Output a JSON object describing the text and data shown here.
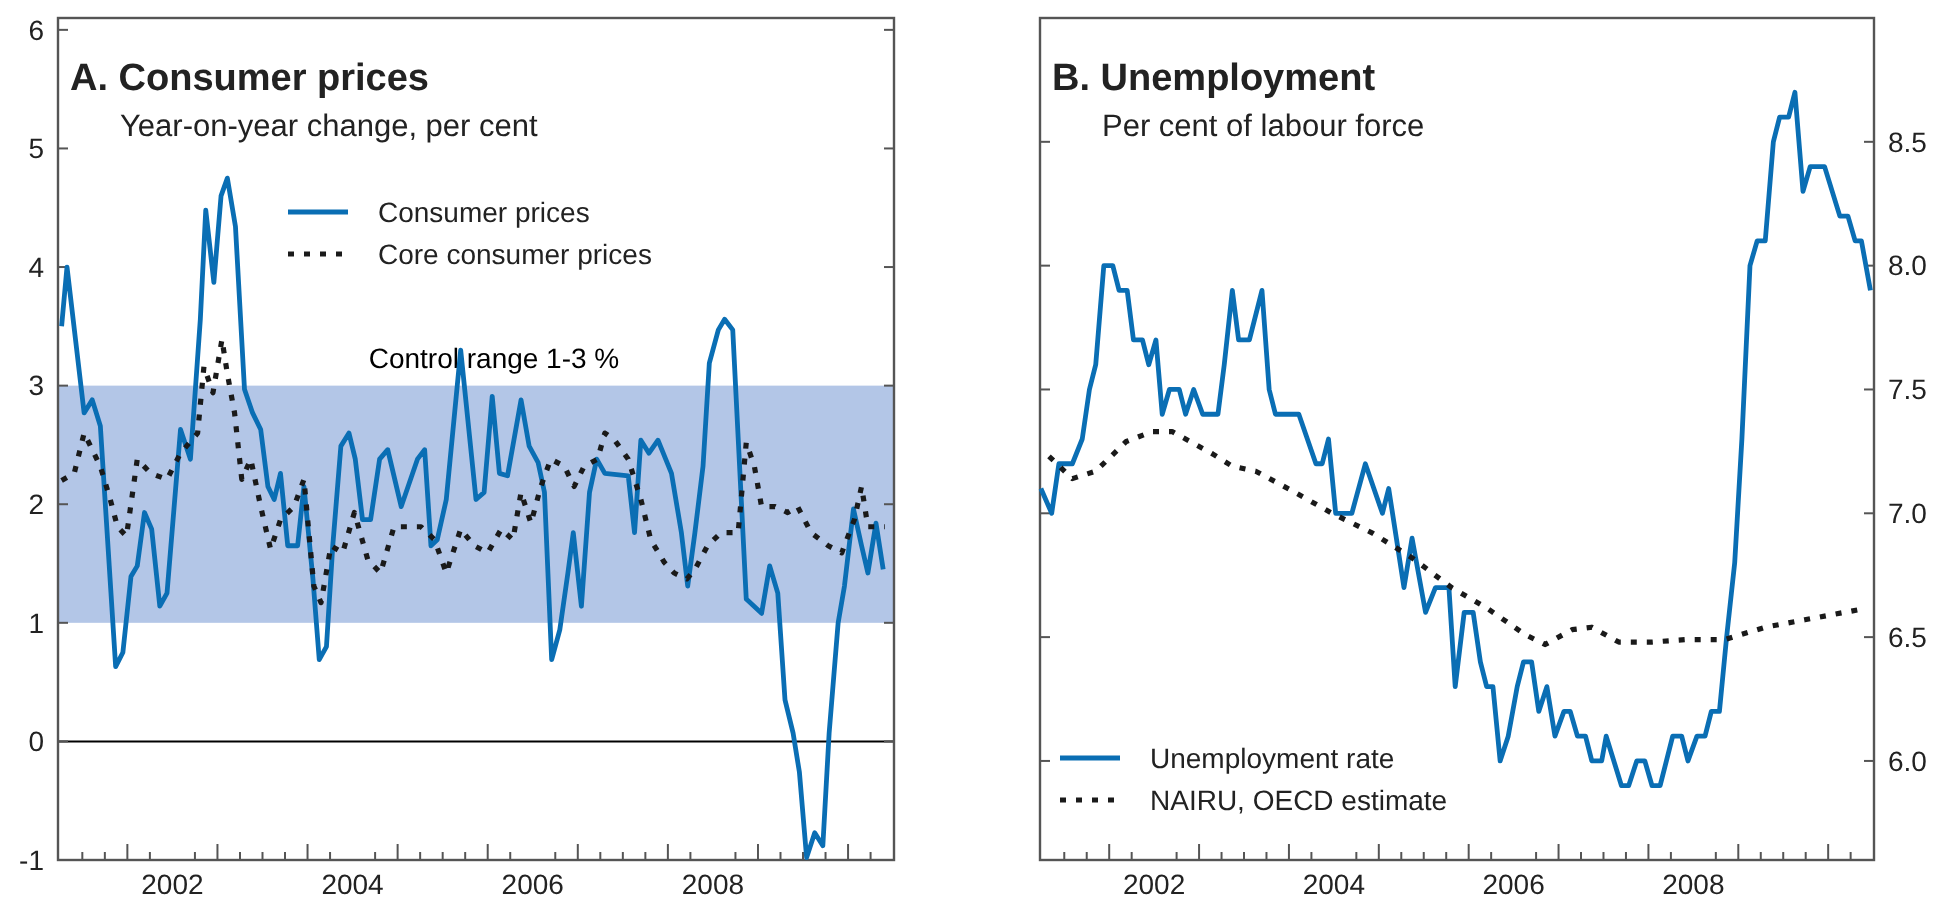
{
  "chart_data": [
    {
      "type": "line",
      "title": "A. Consumer prices",
      "subtitle": "Year-on-year change, per cent",
      "legend": "top",
      "xlim": [
        2001.23,
        2010.51
      ],
      "ylim": [
        -1,
        6.1
      ],
      "yticks": [
        -1,
        0,
        1,
        2,
        3,
        4,
        5,
        6
      ],
      "xticks": [
        {
          "value": 2001.5,
          "label": null
        },
        {
          "value": 2001.75,
          "label": null
        },
        {
          "value": 2002,
          "label": null
        },
        {
          "value": 2002.25,
          "label": null
        },
        {
          "value": 2002.5,
          "label": "2002"
        },
        {
          "value": 2002.75,
          "label": null
        },
        {
          "value": 2003,
          "label": null
        },
        {
          "value": 2003.25,
          "label": null
        },
        {
          "value": 2003.5,
          "label": null
        },
        {
          "value": 2003.75,
          "label": null
        },
        {
          "value": 2004,
          "label": null
        },
        {
          "value": 2004.25,
          "label": null
        },
        {
          "value": 2004.5,
          "label": "2004"
        },
        {
          "value": 2004.75,
          "label": null
        },
        {
          "value": 2005,
          "label": null
        },
        {
          "value": 2005.25,
          "label": null
        },
        {
          "value": 2005.5,
          "label": null
        },
        {
          "value": 2005.75,
          "label": null
        },
        {
          "value": 2006,
          "label": null
        },
        {
          "value": 2006.25,
          "label": null
        },
        {
          "value": 2006.5,
          "label": "2006"
        },
        {
          "value": 2006.75,
          "label": null
        },
        {
          "value": 2007,
          "label": null
        },
        {
          "value": 2007.25,
          "label": null
        },
        {
          "value": 2007.5,
          "label": null
        },
        {
          "value": 2007.75,
          "label": null
        },
        {
          "value": 2008,
          "label": null
        },
        {
          "value": 2008.25,
          "label": null
        },
        {
          "value": 2008.5,
          "label": "2008"
        },
        {
          "value": 2008.75,
          "label": null
        },
        {
          "value": 2009,
          "label": null
        },
        {
          "value": 2009.25,
          "label": null
        },
        {
          "value": 2009.5,
          "label": null
        },
        {
          "value": 2009.75,
          "label": null
        },
        {
          "value": 2010,
          "label": null
        },
        {
          "value": 2010.25,
          "label": null
        }
      ],
      "bands": [
        {
          "axis": "y",
          "from": 1,
          "to": 3,
          "label": "Control range 1-3 %",
          "color": "#b3c6e7"
        }
      ],
      "ref_lines": [
        {
          "axis": "y",
          "value": 0,
          "color": "#000000"
        }
      ],
      "series": [
        {
          "name": "Consumer prices",
          "color": "#0a6eb4",
          "line_style": "solid",
          "x": [
            2001.27,
            2001.33,
            2001.52,
            2001.61,
            2001.7,
            2001.87,
            2001.95,
            2002.04,
            2002.11,
            2002.19,
            2002.27,
            2002.36,
            2002.44,
            2002.59,
            2002.7,
            2002.81,
            2002.87,
            2002.96,
            2003.04,
            2003.11,
            2003.2,
            2003.3,
            2003.39,
            2003.48,
            2003.56,
            2003.63,
            2003.7,
            2003.78,
            2003.89,
            2003.96,
            2004.06,
            2004.13,
            2004.21,
            2004.28,
            2004.37,
            2004.46,
            2004.53,
            2004.61,
            2004.7,
            2004.8,
            2004.89,
            2005.04,
            2005.22,
            2005.3,
            2005.37,
            2005.44,
            2005.54,
            2005.7,
            2005.87,
            2005.96,
            2006.05,
            2006.13,
            2006.22,
            2006.37,
            2006.46,
            2006.56,
            2006.63,
            2006.71,
            2006.8,
            2006.89,
            2006.95,
            2007.04,
            2007.13,
            2007.21,
            2007.3,
            2007.56,
            2007.63,
            2007.7,
            2007.79,
            2007.89,
            2008.04,
            2008.15,
            2008.22,
            2008.3,
            2008.39,
            2008.46,
            2008.56,
            2008.63,
            2008.72,
            2008.87,
            2009.04,
            2009.13,
            2009.22,
            2009.3,
            2009.39,
            2009.46,
            2009.54,
            2009.63,
            2009.72,
            2009.79,
            2009.89,
            2009.96,
            2010.06,
            2010.15,
            2010.22,
            2010.31,
            2010.39
          ],
          "values": [
            3.5,
            4.0,
            2.77,
            2.88,
            2.66,
            0.63,
            0.75,
            1.39,
            1.48,
            1.93,
            1.79,
            1.14,
            1.25,
            2.63,
            2.38,
            3.56,
            4.48,
            3.87,
            4.6,
            4.75,
            4.34,
            2.97,
            2.77,
            2.63,
            2.15,
            2.04,
            2.26,
            1.65,
            1.65,
            2.15,
            1.37,
            0.69,
            0.8,
            1.65,
            2.49,
            2.6,
            2.38,
            1.87,
            1.87,
            2.38,
            2.46,
            1.98,
            2.38,
            2.46,
            1.65,
            1.7,
            2.04,
            3.3,
            2.04,
            2.1,
            2.91,
            2.26,
            2.24,
            2.88,
            2.49,
            2.35,
            2.1,
            0.69,
            0.94,
            1.42,
            1.76,
            1.14,
            2.1,
            2.38,
            2.26,
            2.24,
            1.76,
            2.54,
            2.43,
            2.54,
            2.26,
            1.76,
            1.31,
            1.76,
            2.32,
            3.19,
            3.47,
            3.56,
            3.47,
            1.2,
            1.08,
            1.48,
            1.25,
            0.35,
            0.07,
            -0.26,
            -0.98,
            -0.77,
            -0.88,
            0.07,
            1.0,
            1.31,
            1.96,
            1.65,
            1.42,
            1.84,
            1.45
          ]
        },
        {
          "name": "Core consumer prices",
          "color": "#1a1a1a",
          "line_style": "dotted",
          "x": [
            2001.27,
            2001.41,
            2001.52,
            2001.7,
            2001.81,
            2001.89,
            2001.99,
            2002.11,
            2002.26,
            2002.44,
            2002.59,
            2002.78,
            2002.85,
            2002.95,
            2003.05,
            2003.11,
            2003.19,
            2003.27,
            2003.37,
            2003.48,
            2003.59,
            2003.7,
            2003.85,
            2003.96,
            2004.07,
            2004.15,
            2004.26,
            2004.39,
            2004.52,
            2004.67,
            2004.81,
            2004.96,
            2005.11,
            2005.26,
            2005.41,
            2005.54,
            2005.7,
            2005.85,
            2006.0,
            2006.15,
            2006.28,
            2006.37,
            2006.48,
            2006.59,
            2006.7,
            2006.85,
            2006.96,
            2007.07,
            2007.22,
            2007.3,
            2007.41,
            2007.56,
            2007.7,
            2007.81,
            2007.96,
            2008.07,
            2008.21,
            2008.3,
            2008.44,
            2008.59,
            2008.78,
            2008.87,
            2008.96,
            2009.04,
            2009.19,
            2009.33,
            2009.44,
            2009.59,
            2009.78,
            2009.93,
            2010.07,
            2010.15,
            2010.22,
            2010.41
          ],
          "values": [
            2.2,
            2.26,
            2.6,
            2.32,
            2.04,
            1.81,
            1.73,
            2.38,
            2.26,
            2.21,
            2.43,
            2.6,
            3.16,
            2.94,
            3.39,
            3.1,
            2.77,
            2.21,
            2.38,
            1.98,
            1.62,
            1.87,
            1.98,
            2.21,
            1.31,
            1.17,
            1.65,
            1.59,
            1.93,
            1.53,
            1.42,
            1.81,
            1.81,
            1.81,
            1.7,
            1.42,
            1.79,
            1.65,
            1.59,
            1.79,
            1.7,
            2.1,
            1.84,
            2.15,
            2.38,
            2.32,
            2.15,
            2.32,
            2.38,
            2.6,
            2.54,
            2.38,
            2.04,
            1.7,
            1.51,
            1.42,
            1.37,
            1.45,
            1.65,
            1.76,
            1.76,
            2.52,
            2.32,
            1.98,
            1.98,
            1.93,
            1.98,
            1.76,
            1.65,
            1.59,
            1.87,
            2.15,
            1.81,
            1.81
          ]
        }
      ]
    },
    {
      "type": "line",
      "title": "B. Unemployment",
      "subtitle": "Per cent of labour force",
      "legend": "bottom left",
      "xlim": [
        2001.23,
        2010.51
      ],
      "y2lim": [
        5.6,
        9.0
      ],
      "y2ticks": [
        {
          "value": 6,
          "label": "6.0"
        },
        {
          "value": 6.5,
          "label": "6.5"
        },
        {
          "value": 7,
          "label": "7.0"
        },
        {
          "value": 7.5,
          "label": "7.5"
        },
        {
          "value": 8,
          "label": "8.0"
        },
        {
          "value": 8.5,
          "label": "8.5"
        }
      ],
      "xticks": [
        {
          "value": 2001.5,
          "label": null
        },
        {
          "value": 2001.75,
          "label": null
        },
        {
          "value": 2002,
          "label": null
        },
        {
          "value": 2002.25,
          "label": null
        },
        {
          "value": 2002.5,
          "label": "2002"
        },
        {
          "value": 2002.75,
          "label": null
        },
        {
          "value": 2003,
          "label": null
        },
        {
          "value": 2003.25,
          "label": null
        },
        {
          "value": 2003.5,
          "label": null
        },
        {
          "value": 2003.75,
          "label": null
        },
        {
          "value": 2004,
          "label": null
        },
        {
          "value": 2004.25,
          "label": null
        },
        {
          "value": 2004.5,
          "label": "2004"
        },
        {
          "value": 2004.75,
          "label": null
        },
        {
          "value": 2005,
          "label": null
        },
        {
          "value": 2005.25,
          "label": null
        },
        {
          "value": 2005.5,
          "label": null
        },
        {
          "value": 2005.75,
          "label": null
        },
        {
          "value": 2006,
          "label": null
        },
        {
          "value": 2006.25,
          "label": null
        },
        {
          "value": 2006.5,
          "label": "2006"
        },
        {
          "value": 2006.75,
          "label": null
        },
        {
          "value": 2007,
          "label": null
        },
        {
          "value": 2007.25,
          "label": null
        },
        {
          "value": 2007.5,
          "label": null
        },
        {
          "value": 2007.75,
          "label": null
        },
        {
          "value": 2008,
          "label": null
        },
        {
          "value": 2008.25,
          "label": null
        },
        {
          "value": 2008.5,
          "label": "2008"
        },
        {
          "value": 2008.75,
          "label": null
        },
        {
          "value": 2009,
          "label": null
        },
        {
          "value": 2009.25,
          "label": null
        },
        {
          "value": 2009.5,
          "label": null
        },
        {
          "value": 2009.75,
          "label": null
        },
        {
          "value": 2010,
          "label": null
        },
        {
          "value": 2010.25,
          "label": null
        }
      ],
      "series": [
        {
          "name": "Unemployment rate",
          "color": "#0a6eb4",
          "line_style": "solid",
          "axis": "y2",
          "x": [
            2001.24,
            2001.36,
            2001.44,
            2001.59,
            2001.7,
            2001.78,
            2001.85,
            2001.94,
            2002.04,
            2002.11,
            2002.2,
            2002.27,
            2002.37,
            2002.44,
            2002.52,
            2002.59,
            2002.67,
            2002.78,
            2002.85,
            2002.94,
            2003.04,
            2003.21,
            2003.28,
            2003.37,
            2003.44,
            2003.56,
            2003.7,
            2003.78,
            2003.85,
            2004.11,
            2004.3,
            2004.37,
            2004.44,
            2004.52,
            2004.7,
            2004.85,
            2005.04,
            2005.11,
            2005.28,
            2005.37,
            2005.52,
            2005.63,
            2005.78,
            2005.85,
            2005.95,
            2006.05,
            2006.13,
            2006.2,
            2006.27,
            2006.35,
            2006.44,
            2006.54,
            2006.61,
            2006.7,
            2006.78,
            2006.87,
            2006.96,
            2007.06,
            2007.13,
            2007.21,
            2007.3,
            2007.37,
            2007.48,
            2007.53,
            2007.7,
            2007.78,
            2007.87,
            2007.96,
            2008.04,
            2008.13,
            2008.27,
            2008.37,
            2008.44,
            2008.54,
            2008.63,
            2008.7,
            2008.79,
            2008.87,
            2008.96,
            2009.04,
            2009.13,
            2009.21,
            2009.3,
            2009.39,
            2009.46,
            2009.56,
            2009.63,
            2009.72,
            2009.8,
            2009.96,
            2010.13,
            2010.22,
            2010.3,
            2010.37,
            2010.47
          ],
          "values": [
            7.1,
            7.0,
            7.2,
            7.2,
            7.3,
            7.5,
            7.6,
            8.0,
            8.0,
            7.9,
            7.9,
            7.7,
            7.7,
            7.6,
            7.7,
            7.4,
            7.5,
            7.5,
            7.4,
            7.5,
            7.4,
            7.4,
            7.6,
            7.9,
            7.7,
            7.7,
            7.9,
            7.5,
            7.4,
            7.4,
            7.2,
            7.2,
            7.3,
            7.0,
            7.0,
            7.2,
            7.0,
            7.1,
            6.7,
            6.9,
            6.6,
            6.7,
            6.7,
            6.3,
            6.6,
            6.6,
            6.4,
            6.3,
            6.3,
            6.0,
            6.1,
            6.3,
            6.4,
            6.4,
            6.2,
            6.3,
            6.1,
            6.2,
            6.2,
            6.1,
            6.1,
            6.0,
            6.0,
            6.1,
            5.9,
            5.9,
            6.0,
            6.0,
            5.9,
            5.9,
            6.1,
            6.1,
            6.0,
            6.1,
            6.1,
            6.2,
            6.2,
            6.5,
            6.8,
            7.3,
            8.0,
            8.1,
            8.1,
            8.5,
            8.6,
            8.6,
            8.7,
            8.3,
            8.4,
            8.4,
            8.2,
            8.2,
            8.1,
            8.1,
            7.9
          ]
        },
        {
          "name": "NAIRU, OECD estimate",
          "color": "#1a1a1a",
          "line_style": "dotted",
          "axis": "y2",
          "x": [
            2001.33,
            2001.59,
            2001.85,
            2002.19,
            2002.48,
            2002.7,
            2003.15,
            2003.37,
            2003.63,
            2004.04,
            2004.48,
            2004.93,
            2005.37,
            2005.81,
            2006.19,
            2006.63,
            2006.85,
            2007.15,
            2007.37,
            2007.67,
            2008.04,
            2008.41,
            2008.85,
            2009.3,
            2009.74,
            2010.33
          ],
          "values": [
            7.23,
            7.14,
            7.17,
            7.29,
            7.33,
            7.33,
            7.24,
            7.19,
            7.17,
            7.09,
            7.0,
            6.92,
            6.82,
            6.7,
            6.62,
            6.51,
            6.47,
            6.53,
            6.54,
            6.48,
            6.48,
            6.49,
            6.49,
            6.54,
            6.57,
            6.61
          ]
        }
      ]
    }
  ]
}
